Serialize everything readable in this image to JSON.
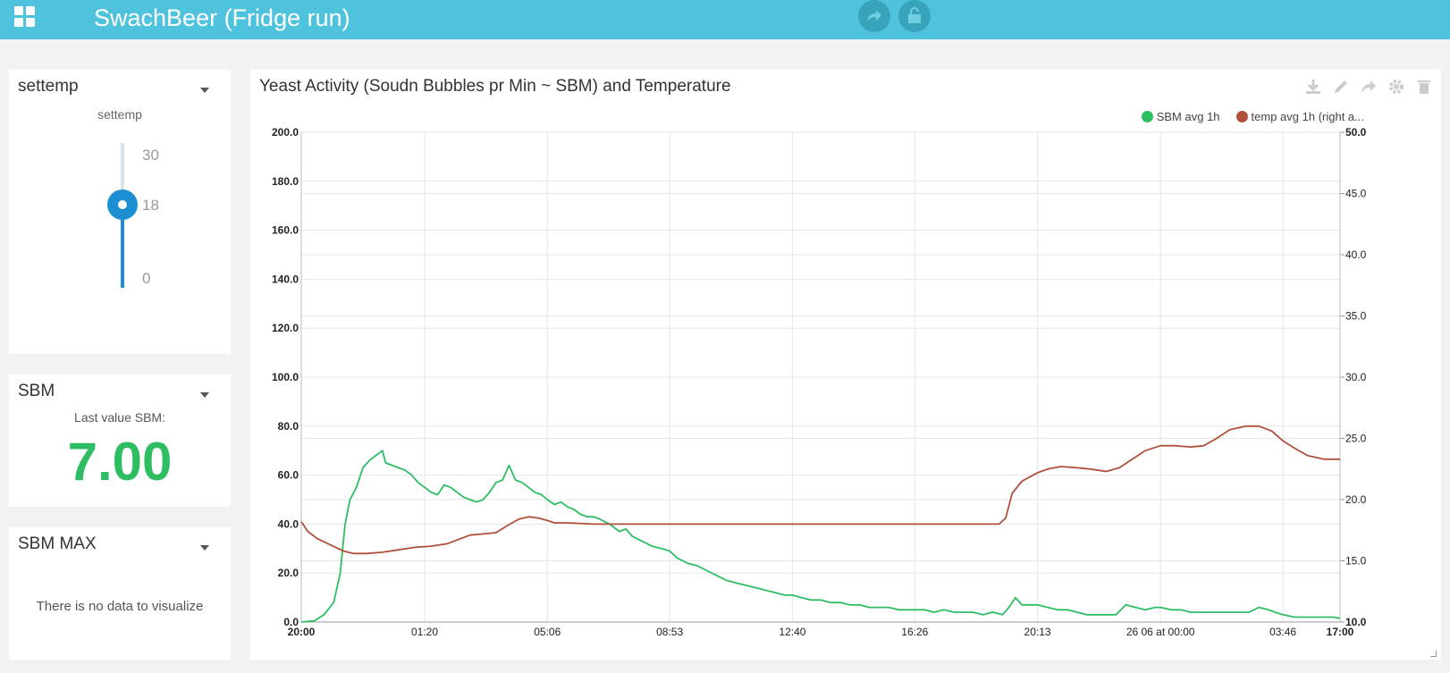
{
  "app": {
    "title": "SwachBeer (Fridge run)"
  },
  "settemp": {
    "title": "settemp",
    "slider_label": "settemp",
    "max_label": "30",
    "value_label": "18",
    "min_label": "0",
    "min": 0,
    "max": 30,
    "value": 18
  },
  "sbm": {
    "title": "SBM",
    "caption": "Last value SBM:",
    "value": "7.00",
    "value_color": "#2ebd63"
  },
  "sbm_max": {
    "title": "SBM MAX",
    "empty_message": "There is no data to visualize"
  },
  "chart_panel": {
    "title": "Yeast Activity (Soudn Bubbles pr Min ~ SBM) and Temperature"
  },
  "toolbar_icons": [
    "download-icon",
    "pencil-icon",
    "share-icon",
    "gear-icon",
    "trash-icon"
  ],
  "chart_data": {
    "type": "line",
    "title": "Yeast Activity (Soudn Bubbles pr Min ~ SBM) and Temperature",
    "x_tick_labels": [
      "20:00",
      "01:20",
      "05:06",
      "08:53",
      "12:40",
      "16:26",
      "20:13",
      "26 06 at 00:00",
      "03:46",
      "17:00"
    ],
    "x_tick_positions": [
      0,
      3.8,
      7.58,
      11.35,
      15.13,
      18.9,
      22.68,
      26.47,
      30.24,
      32.0
    ],
    "xlim": [
      0,
      32
    ],
    "y_left": {
      "ylim": [
        0,
        200
      ],
      "ticks": [
        "0.0",
        "20.0",
        "40.0",
        "60.0",
        "80.0",
        "100.0",
        "120.0",
        "140.0",
        "160.0",
        "180.0",
        "200.0"
      ]
    },
    "y_right": {
      "ylim": [
        10,
        50
      ],
      "ticks": [
        "10.0",
        "15.0",
        "20.0",
        "25.0",
        "30.0",
        "35.0",
        "40.0",
        "45.0",
        "50.0"
      ]
    },
    "grid": true,
    "legend_position": "top-right",
    "series": [
      {
        "name": "SBM avg 1h",
        "color": "#2ebd63",
        "axis": "left",
        "points": [
          [
            0,
            0
          ],
          [
            0.4,
            0.5
          ],
          [
            0.7,
            3
          ],
          [
            1.0,
            8
          ],
          [
            1.2,
            20
          ],
          [
            1.35,
            40
          ],
          [
            1.5,
            50
          ],
          [
            1.7,
            55
          ],
          [
            1.9,
            63
          ],
          [
            2.1,
            66
          ],
          [
            2.3,
            68
          ],
          [
            2.5,
            70
          ],
          [
            2.6,
            65
          ],
          [
            2.8,
            64
          ],
          [
            3.0,
            63
          ],
          [
            3.2,
            62
          ],
          [
            3.4,
            60
          ],
          [
            3.6,
            57
          ],
          [
            3.8,
            55
          ],
          [
            4.0,
            53
          ],
          [
            4.2,
            52
          ],
          [
            4.4,
            56
          ],
          [
            4.6,
            55
          ],
          [
            4.8,
            53
          ],
          [
            5.0,
            51
          ],
          [
            5.2,
            50
          ],
          [
            5.4,
            49
          ],
          [
            5.6,
            50
          ],
          [
            5.8,
            53
          ],
          [
            6.0,
            57
          ],
          [
            6.2,
            58
          ],
          [
            6.4,
            64
          ],
          [
            6.6,
            58
          ],
          [
            6.8,
            57
          ],
          [
            7.0,
            55
          ],
          [
            7.2,
            53
          ],
          [
            7.4,
            52
          ],
          [
            7.58,
            50
          ],
          [
            7.8,
            48
          ],
          [
            8.0,
            49
          ],
          [
            8.2,
            47
          ],
          [
            8.4,
            46
          ],
          [
            8.6,
            44
          ],
          [
            8.8,
            43
          ],
          [
            9.0,
            43
          ],
          [
            9.2,
            42
          ],
          [
            9.5,
            40
          ],
          [
            9.8,
            37
          ],
          [
            10.0,
            38
          ],
          [
            10.2,
            35
          ],
          [
            10.5,
            33
          ],
          [
            10.8,
            31
          ],
          [
            11.1,
            30
          ],
          [
            11.35,
            29
          ],
          [
            11.6,
            26
          ],
          [
            11.9,
            24
          ],
          [
            12.2,
            23
          ],
          [
            12.5,
            21
          ],
          [
            12.8,
            19
          ],
          [
            13.1,
            17
          ],
          [
            13.4,
            16
          ],
          [
            13.7,
            15
          ],
          [
            14.0,
            14
          ],
          [
            14.3,
            13
          ],
          [
            14.6,
            12
          ],
          [
            14.9,
            11
          ],
          [
            15.13,
            11
          ],
          [
            15.4,
            10
          ],
          [
            15.7,
            9
          ],
          [
            16.0,
            9
          ],
          [
            16.3,
            8
          ],
          [
            16.6,
            8
          ],
          [
            16.9,
            7
          ],
          [
            17.2,
            7
          ],
          [
            17.5,
            6
          ],
          [
            17.8,
            6
          ],
          [
            18.1,
            6
          ],
          [
            18.4,
            5
          ],
          [
            18.7,
            5
          ],
          [
            18.9,
            5
          ],
          [
            19.2,
            5
          ],
          [
            19.5,
            4
          ],
          [
            19.8,
            5
          ],
          [
            20.1,
            4
          ],
          [
            20.4,
            4
          ],
          [
            20.7,
            4
          ],
          [
            21.0,
            3
          ],
          [
            21.3,
            4
          ],
          [
            21.6,
            3
          ],
          [
            21.8,
            6
          ],
          [
            22.0,
            10
          ],
          [
            22.2,
            7
          ],
          [
            22.5,
            7
          ],
          [
            22.68,
            7
          ],
          [
            23.0,
            6
          ],
          [
            23.3,
            5
          ],
          [
            23.6,
            5
          ],
          [
            23.9,
            4
          ],
          [
            24.2,
            3
          ],
          [
            24.5,
            3
          ],
          [
            24.8,
            3
          ],
          [
            25.1,
            3
          ],
          [
            25.4,
            7
          ],
          [
            25.7,
            6
          ],
          [
            26.0,
            5
          ],
          [
            26.3,
            6
          ],
          [
            26.47,
            6
          ],
          [
            26.8,
            5
          ],
          [
            27.1,
            5
          ],
          [
            27.4,
            4
          ],
          [
            27.7,
            4
          ],
          [
            28.0,
            4
          ],
          [
            28.3,
            4
          ],
          [
            28.6,
            4
          ],
          [
            28.9,
            4
          ],
          [
            29.2,
            4
          ],
          [
            29.5,
            6
          ],
          [
            29.8,
            5
          ],
          [
            30.0,
            4
          ],
          [
            30.24,
            3
          ],
          [
            30.6,
            2
          ],
          [
            31.0,
            2
          ],
          [
            31.4,
            2
          ],
          [
            31.8,
            2
          ],
          [
            32.0,
            1.5
          ]
        ]
      },
      {
        "name": "temp avg 1h (right a...",
        "color": "#b0503c",
        "axis": "right",
        "points": [
          [
            0,
            18.2
          ],
          [
            0.2,
            17.4
          ],
          [
            0.5,
            16.8
          ],
          [
            0.9,
            16.3
          ],
          [
            1.3,
            15.8
          ],
          [
            1.6,
            15.6
          ],
          [
            2.0,
            15.6
          ],
          [
            2.5,
            15.7
          ],
          [
            3.0,
            15.9
          ],
          [
            3.5,
            16.1
          ],
          [
            4.0,
            16.2
          ],
          [
            4.5,
            16.4
          ],
          [
            4.9,
            16.8
          ],
          [
            5.2,
            17.1
          ],
          [
            5.6,
            17.2
          ],
          [
            6.0,
            17.3
          ],
          [
            6.3,
            17.8
          ],
          [
            6.7,
            18.4
          ],
          [
            7.0,
            18.6
          ],
          [
            7.3,
            18.5
          ],
          [
            7.58,
            18.3
          ],
          [
            7.8,
            18.1
          ],
          [
            8.2,
            18.1
          ],
          [
            9.0,
            18.0
          ],
          [
            10.0,
            18.0
          ],
          [
            11.35,
            18.0
          ],
          [
            12.5,
            18.0
          ],
          [
            13.5,
            18.0
          ],
          [
            15.13,
            18.0
          ],
          [
            16.5,
            18.0
          ],
          [
            17.5,
            18.0
          ],
          [
            18.9,
            18.0
          ],
          [
            20.0,
            18.0
          ],
          [
            21.0,
            18.0
          ],
          [
            21.5,
            18.0
          ],
          [
            21.7,
            18.5
          ],
          [
            21.9,
            20.5
          ],
          [
            22.2,
            21.5
          ],
          [
            22.68,
            22.2
          ],
          [
            23.0,
            22.5
          ],
          [
            23.4,
            22.7
          ],
          [
            23.9,
            22.6
          ],
          [
            24.3,
            22.5
          ],
          [
            24.8,
            22.3
          ],
          [
            25.2,
            22.6
          ],
          [
            25.6,
            23.3
          ],
          [
            26.0,
            24.0
          ],
          [
            26.47,
            24.4
          ],
          [
            26.9,
            24.4
          ],
          [
            27.4,
            24.3
          ],
          [
            27.8,
            24.4
          ],
          [
            28.2,
            25.0
          ],
          [
            28.6,
            25.7
          ],
          [
            29.1,
            26.0
          ],
          [
            29.5,
            26.0
          ],
          [
            29.9,
            25.6
          ],
          [
            30.24,
            24.8
          ],
          [
            30.6,
            24.2
          ],
          [
            31.0,
            23.6
          ],
          [
            31.5,
            23.3
          ],
          [
            32.0,
            23.3
          ]
        ]
      }
    ]
  }
}
